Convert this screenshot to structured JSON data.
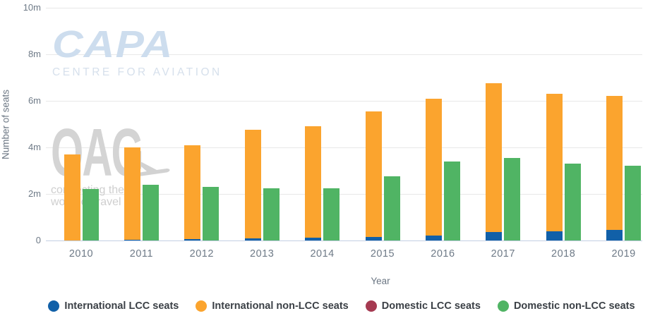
{
  "chart_data": {
    "type": "bar",
    "title": "",
    "xlabel": "Year",
    "ylabel": "Number of seats",
    "categories": [
      "2010",
      "2011",
      "2012",
      "2013",
      "2014",
      "2015",
      "2016",
      "2017",
      "2018",
      "2019"
    ],
    "unit": "millions of seats",
    "series": [
      {
        "name": "International LCC seats",
        "color": "#1160a8",
        "slot": "international",
        "front": true,
        "values": [
          0,
          0.02,
          0.05,
          0.08,
          0.13,
          0.15,
          0.2,
          0.35,
          0.4,
          0.45
        ]
      },
      {
        "name": "International non-LCC seats",
        "color": "#fba42e",
        "slot": "international",
        "front": false,
        "values": [
          3.7,
          4.0,
          4.1,
          4.75,
          4.9,
          5.55,
          6.1,
          6.75,
          6.3,
          6.2
        ]
      },
      {
        "name": "Domestic LCC seats",
        "color": "#a53a51",
        "slot": "domestic",
        "front": true,
        "values": [
          0,
          0,
          0,
          0,
          0,
          0,
          0,
          0,
          0,
          0
        ]
      },
      {
        "name": "Domestic non-LCC seats",
        "color": "#50b464",
        "slot": "domestic",
        "front": false,
        "values": [
          2.2,
          2.4,
          2.3,
          2.25,
          2.25,
          2.75,
          3.4,
          3.55,
          3.3,
          3.2
        ]
      }
    ],
    "yticks": [
      0,
      2,
      4,
      6,
      8,
      10
    ],
    "ytick_labels": [
      "0",
      "2m",
      "4m",
      "6m",
      "8m",
      "10m"
    ],
    "ylim": [
      0,
      10
    ],
    "grid": "horizontal",
    "legend_position": "bottom"
  },
  "watermarks": {
    "capa": {
      "title": "CAPA",
      "subtitle": "CENTRE FOR AVIATION"
    },
    "oag": {
      "title": "OAG",
      "registered": "®",
      "tagline_line1": "connecting the",
      "tagline_line2": "world of travel"
    }
  }
}
